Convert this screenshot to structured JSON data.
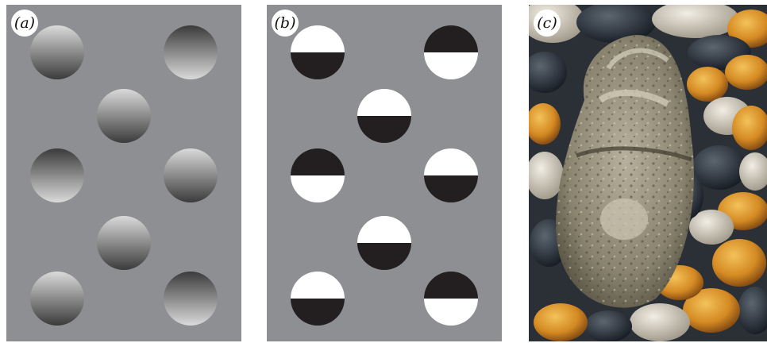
{
  "panels": {
    "a": {
      "label": "(a)"
    },
    "b": {
      "label": "(b)"
    },
    "c": {
      "label": "(c)"
    }
  },
  "discs": [
    {
      "position": "row1-left",
      "orientation": "light-top"
    },
    {
      "position": "row1-right",
      "orientation": "dark-top"
    },
    {
      "position": "row2-center",
      "orientation": "light-top"
    },
    {
      "position": "row3-left",
      "orientation": "dark-top"
    },
    {
      "position": "row3-right",
      "orientation": "light-top"
    },
    {
      "position": "row4-center",
      "orientation": "light-top"
    },
    {
      "position": "row5-left",
      "orientation": "light-top"
    },
    {
      "position": "row5-right",
      "orientation": "dark-top"
    }
  ],
  "colors": {
    "background": "#8e8f92",
    "shade_light": "#d9d9d9",
    "shade_dark": "#3a3a3a",
    "half_white": "#ffffff",
    "half_black": "#231f20"
  }
}
